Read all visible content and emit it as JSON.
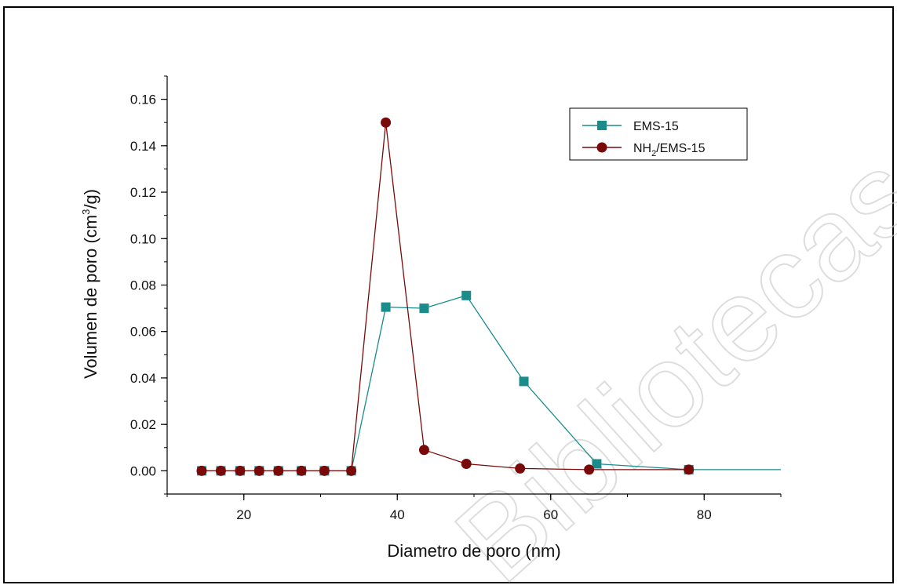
{
  "watermark": "Bibliotecas de la U",
  "chart_data": {
    "type": "line",
    "xlabel": "Diametro de poro (nm)",
    "ylabel_parts": [
      "Volumen de poro (cm",
      "3",
      "/g)"
    ],
    "xlim": [
      10,
      90
    ],
    "ylim": [
      -0.01,
      0.17
    ],
    "x_ticks": [
      20,
      40,
      60,
      80
    ],
    "x_tick_labels": [
      "20",
      "40",
      "60",
      "80"
    ],
    "y_ticks": [
      0.0,
      0.02,
      0.04,
      0.06,
      0.08,
      0.1,
      0.12,
      0.14,
      0.16
    ],
    "y_tick_labels": [
      "0.00",
      "0.02",
      "0.04",
      "0.06",
      "0.08",
      "0.10",
      "0.12",
      "0.14",
      "0.16"
    ],
    "legend_position": "top-right",
    "series": [
      {
        "name": "EMS-15",
        "name_parts": [
          "EMS-15"
        ],
        "color": "#1a8c8c",
        "marker": "square",
        "x": [
          14.5,
          17,
          19.5,
          22,
          24.5,
          27.5,
          30.5,
          34,
          38.5,
          43.5,
          49,
          56.5,
          66,
          78,
          90
        ],
        "y": [
          0,
          0,
          0,
          0,
          0,
          0,
          0,
          0,
          0.0705,
          0.07,
          0.0755,
          0.0385,
          0.003,
          0.0005,
          0.0005
        ],
        "marker_shown": [
          true,
          true,
          true,
          true,
          true,
          true,
          true,
          true,
          true,
          true,
          true,
          true,
          true,
          true,
          false
        ]
      },
      {
        "name": "NH2/EMS-15",
        "name_parts": [
          "NH",
          "2",
          "/EMS-15"
        ],
        "color": "#7a0a0a",
        "marker": "circle",
        "x": [
          14.5,
          17,
          19.5,
          22,
          24.5,
          27.5,
          30.5,
          34,
          38.5,
          43.5,
          49,
          56,
          65,
          78
        ],
        "y": [
          0,
          0,
          0,
          0,
          0,
          0,
          0,
          0,
          0.15,
          0.009,
          0.003,
          0.001,
          0.0005,
          0.0005
        ],
        "marker_shown": [
          true,
          true,
          true,
          true,
          true,
          true,
          true,
          true,
          true,
          true,
          true,
          true,
          true,
          true
        ]
      }
    ]
  }
}
